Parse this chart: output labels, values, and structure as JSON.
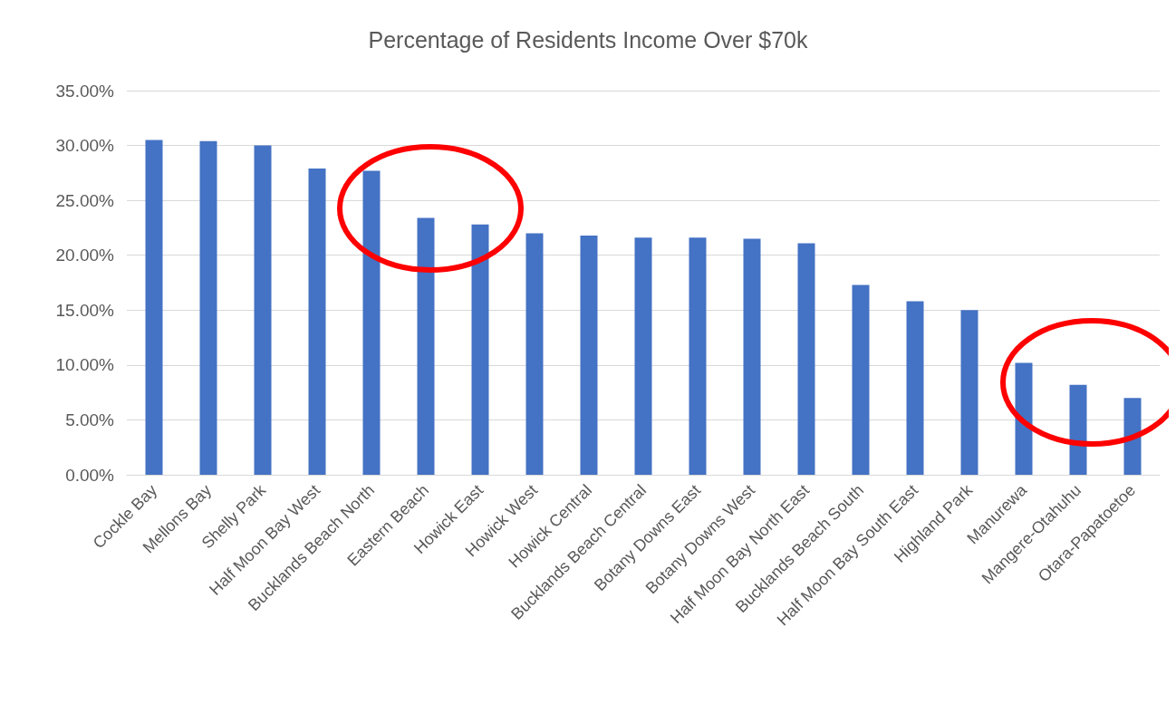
{
  "chart_data": {
    "type": "bar",
    "title": "Percentage of Residents Income Over $70k",
    "categories": [
      "Cockle Bay",
      "Mellons Bay",
      "Shelly Park",
      "Half Moon Bay West",
      "Bucklands Beach North",
      "Eastern Beach",
      "Howick East",
      "Howick West",
      "Howick Central",
      "Bucklands Beach Central",
      "Botany Downs East",
      "Botany Downs West",
      "Half Moon Bay North East",
      "Bucklands Beach South",
      "Half Moon Bay South East",
      "Highland Park",
      "Manurewa",
      "Mangere-Otahuhu",
      "Otara-Papatoetoe"
    ],
    "values": [
      30.5,
      30.4,
      30.0,
      27.9,
      27.7,
      23.4,
      22.8,
      22.0,
      21.8,
      21.6,
      21.6,
      21.5,
      21.1,
      17.3,
      15.8,
      15.0,
      10.2,
      8.2,
      7.0
    ],
    "color": "#4472c4",
    "ylim": [
      0,
      35
    ],
    "yticks": [
      {
        "value": 0,
        "label": "0.00%"
      },
      {
        "value": 5,
        "label": "5.00%"
      },
      {
        "value": 10,
        "label": "10.00%"
      },
      {
        "value": 15,
        "label": "15.00%"
      },
      {
        "value": 20,
        "label": "20.00%"
      },
      {
        "value": 25,
        "label": "25.00%"
      },
      {
        "value": 30,
        "label": "30.00%"
      },
      {
        "value": 35,
        "label": "35.00%"
      }
    ],
    "grid": "y"
  }
}
